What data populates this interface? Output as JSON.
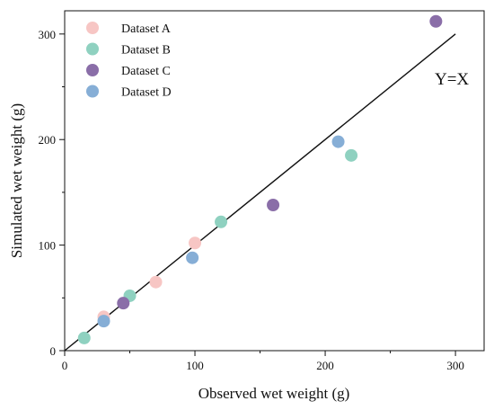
{
  "chart_data": {
    "type": "scatter",
    "title": "",
    "xlabel": "Observed wet weight (g)",
    "ylabel": "Simulated wet weight (g)",
    "xlim": [
      0,
      322
    ],
    "ylim": [
      0,
      322
    ],
    "xticks": [
      0,
      100,
      200,
      300
    ],
    "yticks": [
      0,
      100,
      200,
      300
    ],
    "grid": false,
    "legend_position": "top-left",
    "series": [
      {
        "name": "Dataset A",
        "color": "#f7c6c4",
        "points": [
          [
            30,
            32
          ],
          [
            70,
            65
          ],
          [
            100,
            102
          ]
        ]
      },
      {
        "name": "Dataset B",
        "color": "#8fd1c0",
        "points": [
          [
            15,
            12
          ],
          [
            50,
            52
          ],
          [
            120,
            122
          ],
          [
            220,
            185
          ]
        ]
      },
      {
        "name": "Dataset C",
        "color": "#8a6ea8",
        "points": [
          [
            45,
            45
          ],
          [
            160,
            138
          ],
          [
            285,
            312
          ]
        ]
      },
      {
        "name": "Dataset D",
        "color": "#86aed6",
        "points": [
          [
            30,
            28
          ],
          [
            98,
            88
          ],
          [
            210,
            198
          ]
        ]
      }
    ],
    "reference_line": {
      "label": "Y=X",
      "from": [
        0,
        0
      ],
      "to": [
        300,
        300
      ]
    }
  }
}
